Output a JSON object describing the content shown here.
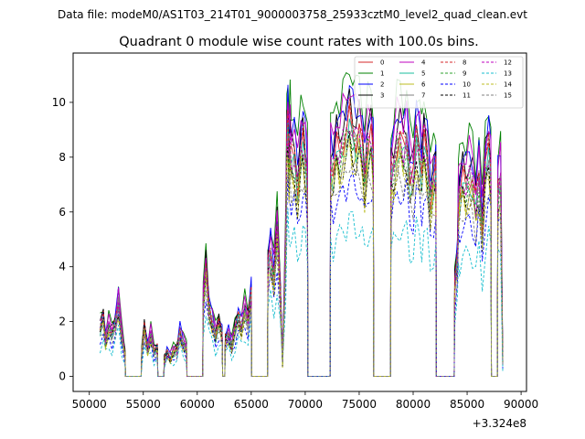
{
  "chart_data": {
    "type": "line",
    "suptitle": "Data file: modeM0/AS1T03_214T01_9000003758_25933cztM0_level2_quad_clean.evt",
    "title": "Quadrant 0 module wise count rates with 100.0s bins.",
    "xlabel": "",
    "ylabel": "",
    "x_offset_label": "+3.324e8",
    "xlim": [
      48500,
      90500
    ],
    "ylim": [
      -0.55,
      11.8
    ],
    "xticks": [
      50000,
      55000,
      60000,
      65000,
      70000,
      75000,
      80000,
      85000,
      90000
    ],
    "xtick_labels": [
      "50000",
      "55000",
      "60000",
      "65000",
      "70000",
      "75000",
      "80000",
      "85000",
      "90000"
    ],
    "yticks": [
      0,
      2,
      4,
      6,
      8,
      10
    ],
    "ytick_labels": [
      "0",
      "2",
      "4",
      "6",
      "8",
      "10"
    ],
    "grid": false,
    "legend_position": "top-right",
    "legend_columns": 4,
    "profile_x": [
      51000,
      51300,
      51500,
      51800,
      52100,
      52400,
      52700,
      53000,
      53300,
      53350,
      54800,
      54850,
      55100,
      55400,
      55700,
      56000,
      56300,
      56350,
      56900,
      56950,
      57200,
      57500,
      57800,
      58100,
      58400,
      58700,
      59000,
      59050,
      60500,
      60550,
      60800,
      61100,
      61400,
      61700,
      62000,
      62300,
      62350,
      62550,
      62600,
      62900,
      63200,
      63500,
      63800,
      64100,
      64400,
      64700,
      65000,
      65050,
      66500,
      66550,
      66800,
      67100,
      67400,
      67700,
      67900,
      68200,
      68300,
      68400,
      68500,
      68600,
      68700,
      69000,
      69300,
      69600,
      69800,
      70000,
      70200,
      70250,
      72300,
      72350,
      72600,
      72900,
      73200,
      73500,
      73800,
      74100,
      74400,
      74700,
      75000,
      75300,
      75500,
      75800,
      76100,
      76300,
      76350,
      77900,
      77950,
      78200,
      78500,
      78800,
      79100,
      79400,
      79700,
      80000,
      80300,
      80600,
      80800,
      81000,
      81300,
      81600,
      81900,
      82100,
      82150,
      83800,
      83850,
      84100,
      84200,
      84300,
      84600,
      84900,
      85200,
      85500,
      85800,
      86100,
      86400,
      86700,
      87000,
      87200,
      87250,
      87800,
      87850,
      88100,
      88300
    ],
    "profile_y": [
      1.75,
      2.1,
      1.3,
      1.8,
      1.55,
      1.9,
      2.7,
      1.5,
      0.8,
      0,
      0,
      0.8,
      1.75,
      1.0,
      1.5,
      0.9,
      1.0,
      0,
      0,
      0.6,
      0.85,
      0.7,
      0.9,
      0.95,
      1.6,
      1.2,
      1.0,
      0,
      0,
      2.6,
      3.95,
      2.4,
      2.0,
      1.5,
      1.9,
      1.5,
      0,
      0,
      1.3,
      1.5,
      1.1,
      1.7,
      2.1,
      1.8,
      2.4,
      2.0,
      3.0,
      0,
      0,
      4.0,
      4.5,
      3.6,
      5.4,
      3.0,
      0.5,
      4.8,
      8.5,
      9.1,
      7.7,
      8.5,
      7.9,
      8.0,
      6.9,
      8.2,
      8.5,
      8.0,
      7.2,
      0,
      0,
      7.8,
      7.5,
      8.4,
      8.1,
      8.6,
      8.8,
      9.4,
      8.9,
      8.6,
      8.9,
      8.2,
      7.3,
      8.4,
      8.7,
      8.0,
      0,
      0,
      7.4,
      7.7,
      8.5,
      8.7,
      8.2,
      8.6,
      7.3,
      7.2,
      8.6,
      8.1,
      7.5,
      8.5,
      7.9,
      6.4,
      7.1,
      7.4,
      0,
      0,
      3.3,
      4.2,
      6.4,
      6.6,
      7.2,
      6.9,
      7.3,
      7.1,
      6.2,
      7.3,
      5.4,
      7.6,
      8.2,
      7.4,
      0,
      0,
      6.8,
      7.1,
      0.5
    ],
    "series": [
      {
        "name": "0",
        "color": "#d62728",
        "dash": "solid",
        "scale": 1.0
      },
      {
        "name": "1",
        "color": "#008000",
        "dash": "solid",
        "scale": 1.22
      },
      {
        "name": "2",
        "color": "#0000ff",
        "dash": "solid",
        "scale": 1.12
      },
      {
        "name": "3",
        "color": "#000000",
        "dash": "solid",
        "scale": 1.08
      },
      {
        "name": "4",
        "color": "#bf00bf",
        "dash": "solid",
        "scale": 1.14
      },
      {
        "name": "5",
        "color": "#1abc9c",
        "dash": "solid",
        "scale": 0.96
      },
      {
        "name": "6",
        "color": "#bcbd22",
        "dash": "solid",
        "scale": 0.92
      },
      {
        "name": "7",
        "color": "#7f7f7f",
        "dash": "solid",
        "scale": 0.98
      },
      {
        "name": "8",
        "color": "#d62728",
        "dash": "dashed",
        "scale": 1.02
      },
      {
        "name": "9",
        "color": "#2ca02c",
        "dash": "dashed",
        "scale": 0.97
      },
      {
        "name": "10",
        "color": "#0000ff",
        "dash": "dashed",
        "scale": 0.78
      },
      {
        "name": "11",
        "color": "#000000",
        "dash": "dashed",
        "scale": 0.9
      },
      {
        "name": "12",
        "color": "#bf00bf",
        "dash": "dashed",
        "scale": 1.0
      },
      {
        "name": "13",
        "color": "#17becf",
        "dash": "dashed",
        "scale": 0.62
      },
      {
        "name": "14",
        "color": "#bcbd22",
        "dash": "dashed",
        "scale": 0.88
      },
      {
        "name": "15",
        "color": "#7f7f7f",
        "dash": "dashed",
        "scale": 0.85
      }
    ]
  }
}
